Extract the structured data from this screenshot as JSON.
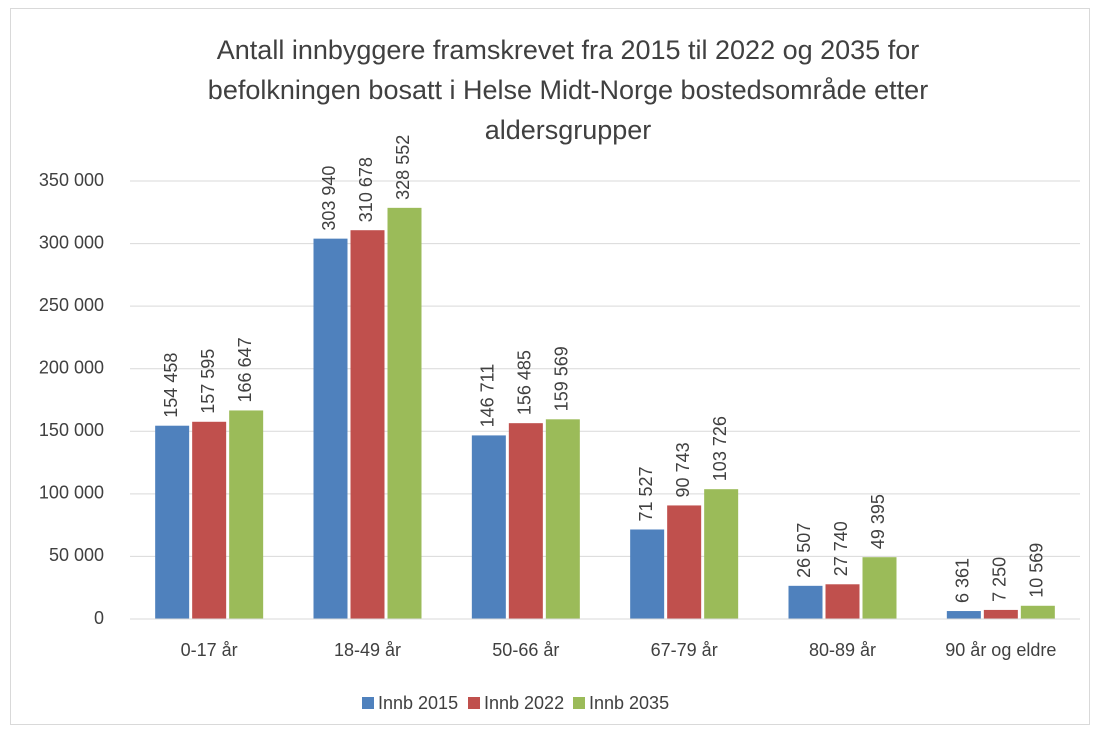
{
  "chart_data": {
    "type": "bar",
    "title": [
      "Antall innbyggere framskrevet fra 2015 til 2022 og 2035 for",
      "befolkningen bosatt i Helse Midt-Norge bostedsområde etter",
      "aldersgrupper"
    ],
    "categories": [
      "0-17 år",
      "18-49 år",
      "50-66 år",
      "67-79 år",
      "80-89 år",
      "90 år og eldre"
    ],
    "series": [
      {
        "name": "Innb 2015",
        "color": "#4f81bd",
        "values": [
          154458,
          303940,
          146711,
          71527,
          26507,
          6361
        ],
        "value_labels": [
          "154 458",
          "303 940",
          "146 711",
          "71 527",
          "26 507",
          "6 361"
        ]
      },
      {
        "name": "Innb 2022",
        "color": "#c0504d",
        "values": [
          157595,
          310678,
          156485,
          90743,
          27740,
          7250
        ],
        "value_labels": [
          "157 595",
          "310 678",
          "156 485",
          "90 743",
          "27 740",
          "7 250"
        ]
      },
      {
        "name": "Innb 2035",
        "color": "#9bbb59",
        "values": [
          166647,
          328552,
          159569,
          103726,
          49395,
          10569
        ],
        "value_labels": [
          "166 647",
          "328 552",
          "159 569",
          "103 726",
          "49 395",
          "10 569"
        ]
      }
    ],
    "ylim": [
      0,
      350000
    ],
    "yticks": [
      0,
      {
        "value": 50000,
        "label": "50 000"
      },
      {
        "value": 100000,
        "label": "100 000"
      },
      {
        "value": 150000,
        "label": "150 000"
      },
      {
        "value": 200000,
        "label": "200 000"
      },
      {
        "value": 250000,
        "label": "250 000"
      },
      {
        "value": 300000,
        "label": "300 000"
      },
      {
        "value": 350000,
        "label": "350 000"
      }
    ],
    "grid": true,
    "legend": "bottom"
  }
}
